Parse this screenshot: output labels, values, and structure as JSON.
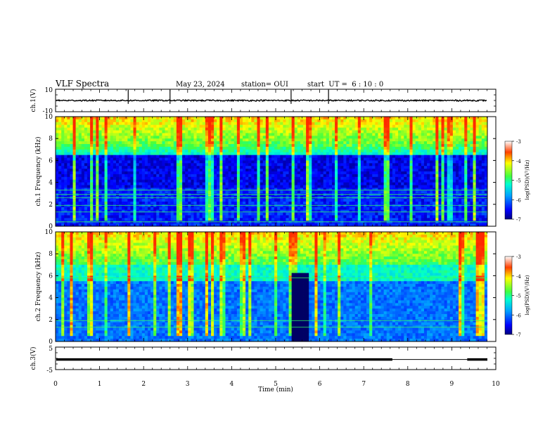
{
  "chart_data": {
    "type": "heatmap",
    "title": "VLF Spectra",
    "date": "May 23, 2024",
    "station": "station= OUI",
    "start_ut": "start  UT =  6 : 10 : 0",
    "xlabel": "Time (min)",
    "x_ticks": [
      "0",
      "1",
      "2",
      "3",
      "4",
      "5",
      "6",
      "7",
      "8",
      "9",
      "10"
    ],
    "xlim": [
      0,
      10
    ],
    "panels": [
      {
        "name": "ch1-waveform",
        "type": "line",
        "ylabel": "ch.1(V)",
        "ylim": [
          -10,
          10
        ],
        "y_ticks": [
          "10",
          "-10"
        ],
        "baseline": 0,
        "description_values": {
          "typical_amplitude": 0.6,
          "spike_times_min": [
            1.65,
            2.6,
            5.35,
            6.2
          ]
        }
      },
      {
        "name": "ch1-spectrogram",
        "type": "heatmap",
        "ylabel": "ch.1 Frequency (kHz)",
        "ylim": [
          0,
          10
        ],
        "y_ticks": [
          "0",
          "2",
          "4",
          "6",
          "8",
          "10"
        ],
        "colorbar": {
          "label": "log(PSD)(V²/Hz)",
          "range": [
            -7,
            -3
          ],
          "ticks": [
            "-3",
            "-4",
            "-5",
            "-6",
            "-7"
          ]
        },
        "quiet_band_khz": [
          3.5,
          6.5
        ],
        "narrowband_lines_khz": [
          0.4,
          1.3,
          1.9,
          2.6,
          2.9,
          3.3
        ]
      },
      {
        "name": "ch2-spectrogram",
        "type": "heatmap",
        "ylabel": "ch.2 Frequency (kHz)",
        "ylim": [
          0,
          10
        ],
        "y_ticks": [
          "0",
          "2",
          "4",
          "6",
          "8",
          "10"
        ],
        "colorbar": {
          "label": "log(PSD)(V²/Hz)",
          "range": [
            -7,
            -3
          ],
          "ticks": [
            "-3",
            "-4",
            "-5",
            "-6",
            "-7"
          ]
        },
        "data_gap_min": [
          5.35,
          5.7
        ],
        "narrowband_lines_khz": [
          1.3,
          1.9,
          5.8
        ]
      },
      {
        "name": "ch3-waveform",
        "type": "line",
        "ylabel": "ch.3(V)",
        "ylim": [
          -5,
          5
        ],
        "y_ticks": [
          "5",
          "-5"
        ],
        "level_v": -0.5,
        "gap_min": [
          7.65,
          9.35
        ]
      }
    ]
  }
}
